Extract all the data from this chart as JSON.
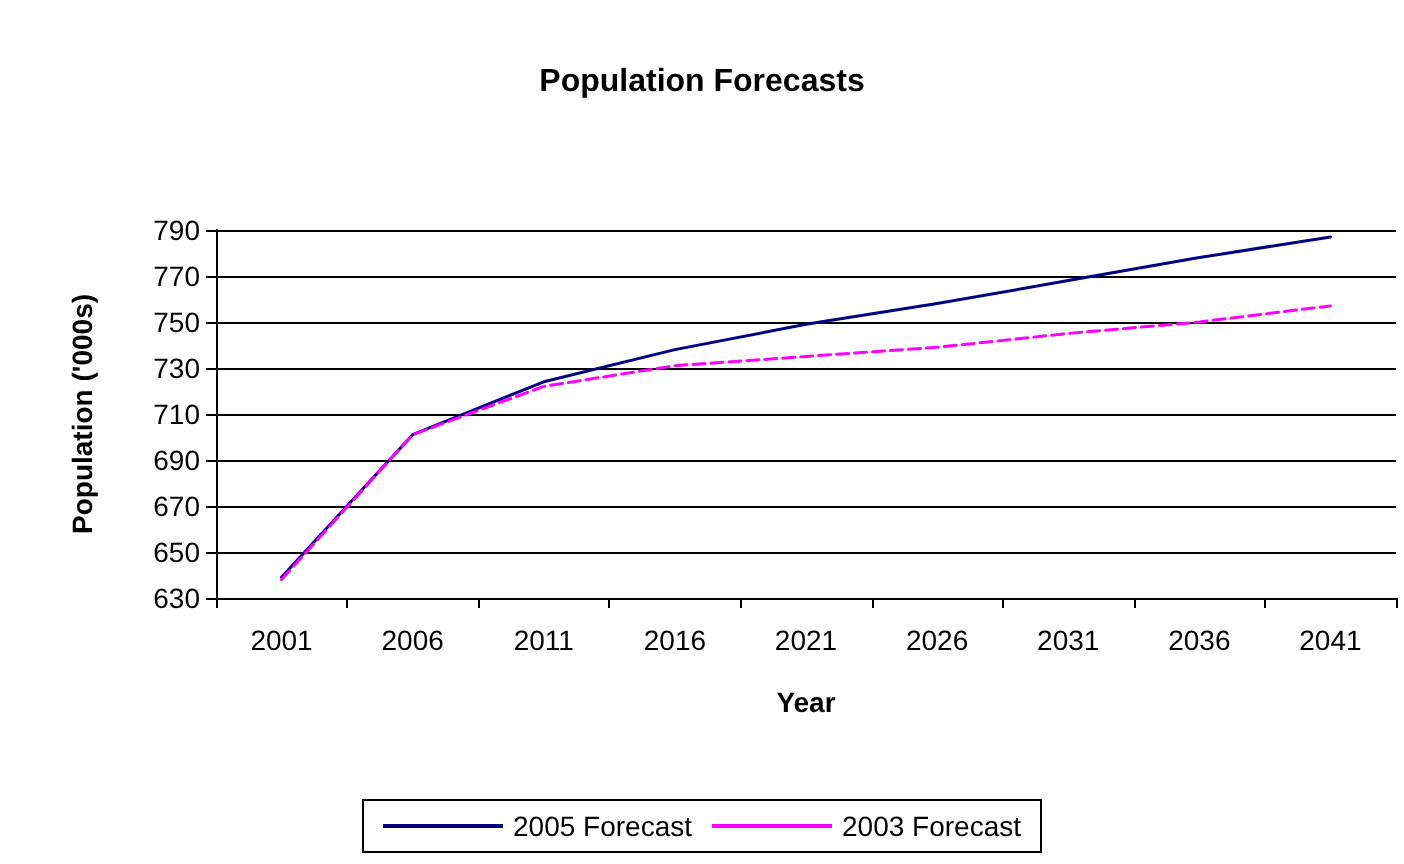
{
  "chart_data": {
    "type": "line",
    "title": "Population Forecasts",
    "xlabel": "Year",
    "ylabel": "Population ('000s)",
    "categories": [
      "2001",
      "2006",
      "2011",
      "2016",
      "2021",
      "2026",
      "2031",
      "2036",
      "2041"
    ],
    "series": [
      {
        "name": "2005 Forecast",
        "color": "#000080",
        "line_style": "solid",
        "values": [
          639,
          701,
          724,
          738,
          749,
          758,
          768,
          778,
          787
        ]
      },
      {
        "name": "2003 Forecast",
        "color": "#ff00ff",
        "line_style": "dashed",
        "values": [
          638,
          701,
          722,
          731,
          735,
          739,
          745,
          750,
          757
        ]
      }
    ],
    "ylim": [
      630,
      790
    ],
    "yticks": [
      630,
      650,
      670,
      690,
      710,
      730,
      750,
      770,
      790
    ],
    "grid": "y",
    "legend": "bottom",
    "marker": "none"
  }
}
